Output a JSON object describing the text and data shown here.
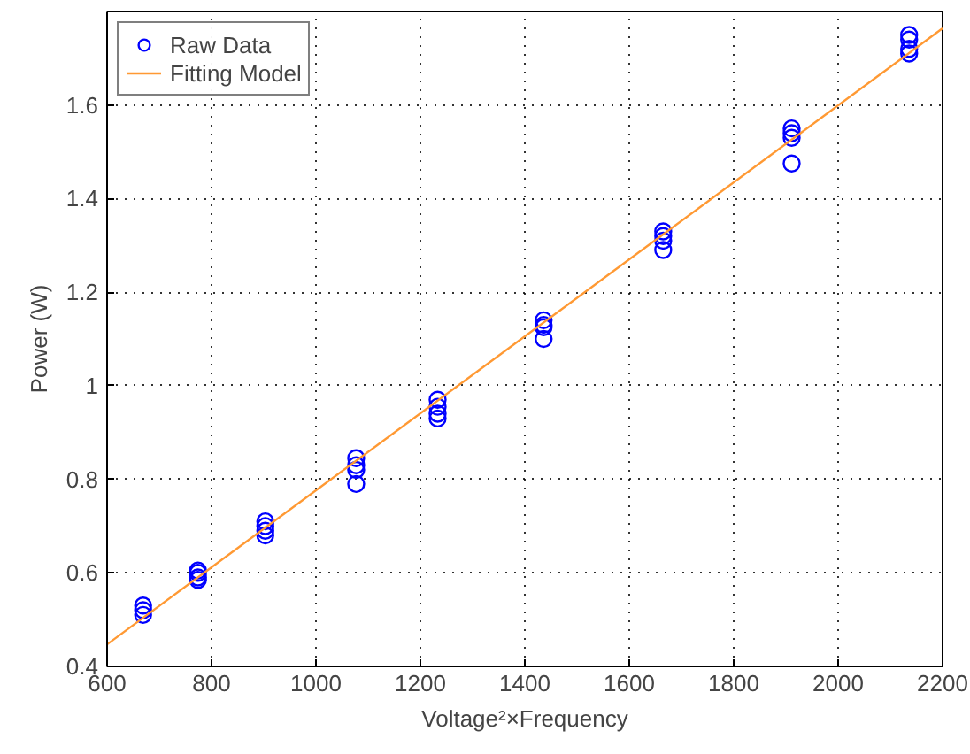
{
  "chart_data": {
    "type": "scatter",
    "xlabel": "Voltage²×Frequency",
    "ylabel": "Power (W)",
    "xlim": [
      600,
      2200
    ],
    "ylim": [
      0.4,
      1.8
    ],
    "xticks": [
      600,
      800,
      1000,
      1200,
      1400,
      1600,
      1800,
      2000,
      2200
    ],
    "yticks": [
      0.4,
      0.6,
      0.8,
      1,
      1.2,
      1.4,
      1.6
    ],
    "grid": true,
    "legend": "top left",
    "series": [
      {
        "name": "Raw Data",
        "marker": "circle",
        "color": "#0000ff",
        "x": [
          669,
          669,
          669,
          774,
          774,
          774,
          774,
          903,
          903,
          903,
          903,
          1077,
          1077,
          1077,
          1077,
          1233,
          1233,
          1233,
          1233,
          1436,
          1436,
          1436,
          1436,
          1665,
          1665,
          1665,
          1665,
          1911,
          1911,
          1911,
          1911,
          2136,
          2136,
          2136,
          2136
        ],
        "values": [
          0.53,
          0.52,
          0.51,
          0.605,
          0.6,
          0.59,
          0.585,
          0.71,
          0.7,
          0.69,
          0.68,
          0.845,
          0.83,
          0.82,
          0.79,
          0.97,
          0.955,
          0.94,
          0.93,
          1.14,
          1.13,
          1.125,
          1.1,
          1.33,
          1.32,
          1.31,
          1.29,
          1.55,
          1.54,
          1.53,
          1.475,
          1.75,
          1.74,
          1.72,
          1.71
        ]
      },
      {
        "name": "Fitting Model",
        "type": "line",
        "line_style": "solid",
        "color": "#ff9933",
        "x": [
          600,
          2200
        ],
        "values": [
          0.447,
          1.764
        ]
      }
    ]
  }
}
